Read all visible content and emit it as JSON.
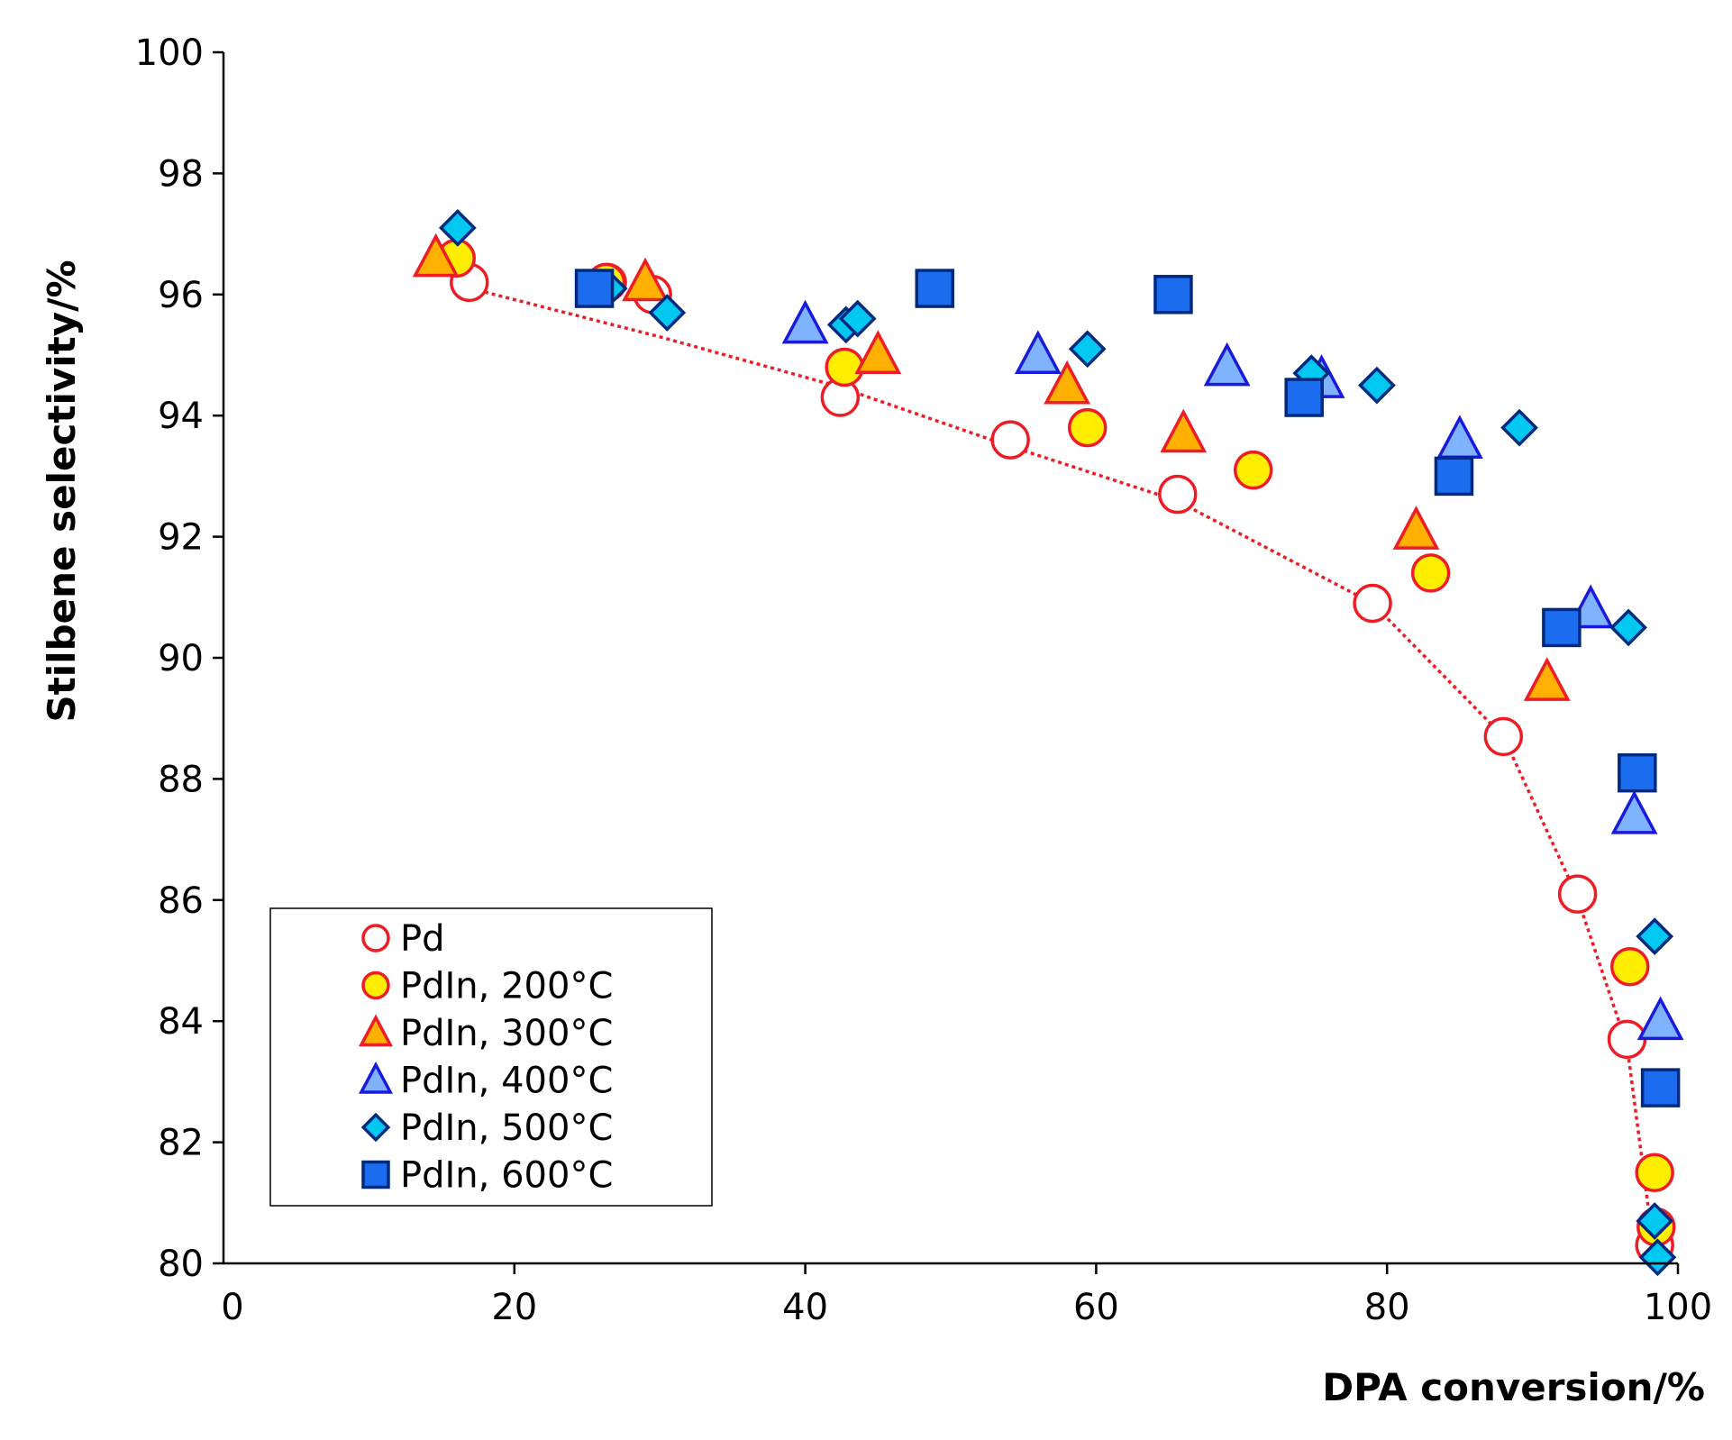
{
  "chart_data": {
    "type": "scatter",
    "title": "",
    "xlabel": "DPA conversion/%",
    "ylabel": "Stilbene selectivity/%",
    "xlim": [
      0,
      100
    ],
    "ylim": [
      80,
      100
    ],
    "x_ticks": [
      0,
      20,
      40,
      60,
      80,
      100
    ],
    "y_ticks": [
      80,
      82,
      84,
      86,
      88,
      90,
      92,
      94,
      96,
      98,
      100
    ],
    "grid": false,
    "legend_position": "bottom-left",
    "trendline": {
      "series": "Pd",
      "style": "dotted",
      "color": "#ee1c24",
      "points": [
        [
          17,
          96.1
        ],
        [
          30,
          95.3
        ],
        [
          42,
          94.5
        ],
        [
          54,
          93.5
        ],
        [
          65.5,
          92.6
        ],
        [
          79,
          90.9
        ],
        [
          88,
          88.7
        ],
        [
          93,
          86.1
        ],
        [
          96.5,
          83.6
        ],
        [
          98.3,
          80.3
        ]
      ]
    },
    "series": [
      {
        "name": "Pd",
        "marker": "circle",
        "fill": "#ffffff",
        "stroke": "#ee1c24",
        "points": [
          [
            16.9,
            96.2
          ],
          [
            26.4,
            96.2
          ],
          [
            29.5,
            96.0
          ],
          [
            42.4,
            94.3
          ],
          [
            54.1,
            93.6
          ],
          [
            65.6,
            92.7
          ],
          [
            79,
            90.9
          ],
          [
            88,
            88.7
          ],
          [
            93.1,
            86.1
          ],
          [
            96.5,
            83.7
          ],
          [
            98.4,
            80.3
          ]
        ]
      },
      {
        "name": "PdIn, 200°C",
        "marker": "circle",
        "fill": "#ffee00",
        "stroke": "#ee1c24",
        "points": [
          [
            16,
            96.6
          ],
          [
            26.3,
            96.2
          ],
          [
            42.7,
            94.8
          ],
          [
            59.4,
            93.8
          ],
          [
            70.8,
            93.1
          ],
          [
            83,
            91.4
          ],
          [
            96.7,
            84.9
          ],
          [
            98.4,
            81.5
          ],
          [
            98.5,
            80.6
          ]
        ]
      },
      {
        "name": "PdIn, 300°C",
        "marker": "triangle",
        "fill": "#ffb000",
        "stroke": "#ee1c24",
        "points": [
          [
            14.6,
            96.6
          ],
          [
            29,
            96.2
          ],
          [
            45,
            95.0
          ],
          [
            58,
            94.5
          ],
          [
            66,
            93.7
          ],
          [
            82,
            92.1
          ],
          [
            91,
            89.6
          ]
        ]
      },
      {
        "name": "PdIn, 400°C",
        "marker": "triangle",
        "fill": "#7fb2ff",
        "stroke": "#1a1adc",
        "points": [
          [
            40,
            95.5
          ],
          [
            56,
            95.0
          ],
          [
            69,
            94.8
          ],
          [
            75.5,
            94.6
          ],
          [
            85,
            93.6
          ],
          [
            94,
            90.8
          ],
          [
            97,
            87.4
          ],
          [
            98.8,
            84.0
          ]
        ]
      },
      {
        "name": "PdIn, 500°C",
        "marker": "diamond",
        "fill": "#00c8f0",
        "stroke": "#002a80",
        "points": [
          [
            16.1,
            97.1
          ],
          [
            26.5,
            96.1
          ],
          [
            30.5,
            95.7
          ],
          [
            42.8,
            95.5
          ],
          [
            43.6,
            95.6
          ],
          [
            59.4,
            95.1
          ],
          [
            74.8,
            94.7
          ],
          [
            79.3,
            94.5
          ],
          [
            89.1,
            93.8
          ],
          [
            96.6,
            90.5
          ],
          [
            98.4,
            85.4
          ],
          [
            98.4,
            80.7
          ],
          [
            98.6,
            80.1
          ]
        ]
      },
      {
        "name": "PdIn, 600°C",
        "marker": "square",
        "fill": "#1c6cf0",
        "stroke": "#002a80",
        "points": [
          [
            25.5,
            96.1
          ],
          [
            48.9,
            96.1
          ],
          [
            65.3,
            96.0
          ],
          [
            74.3,
            94.3
          ],
          [
            84.6,
            93.0
          ],
          [
            92,
            90.5
          ],
          [
            97.2,
            88.1
          ],
          [
            98.8,
            82.9
          ]
        ]
      }
    ]
  }
}
